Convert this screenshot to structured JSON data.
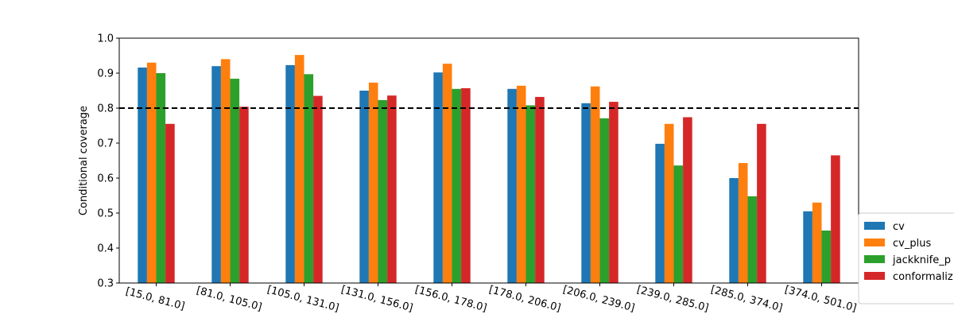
{
  "chart_data": {
    "type": "bar",
    "title": "",
    "xlabel": "",
    "ylabel": "Conditional coverage",
    "ylim": [
      0.3,
      1.0
    ],
    "yticks": [
      "0.3",
      "0.4",
      "0.5",
      "0.6",
      "0.7",
      "0.8",
      "0.9",
      "1.0"
    ],
    "categories": [
      "[15.0, 81.0]",
      "[81.0, 105.0]",
      "[105.0, 131.0]",
      "[131.0, 156.0]",
      "[156.0, 178.0]",
      "[178.0, 206.0]",
      "[206.0, 239.0]",
      "[239.0, 285.0]",
      "[285.0, 374.0]",
      "[374.0, 501.0]"
    ],
    "series": [
      {
        "name": "cv",
        "color": "#1f77b4",
        "values": [
          0.916,
          0.92,
          0.923,
          0.85,
          0.902,
          0.855,
          0.814,
          0.698,
          0.6,
          0.505
        ]
      },
      {
        "name": "cv_plus",
        "color": "#ff7f0e",
        "values": [
          0.93,
          0.94,
          0.952,
          0.873,
          0.927,
          0.864,
          0.862,
          0.755,
          0.643,
          0.53
        ]
      },
      {
        "name": "jackknife_plus",
        "color": "#2ca02c",
        "values": [
          0.9,
          0.884,
          0.897,
          0.823,
          0.855,
          0.808,
          0.771,
          0.636,
          0.548,
          0.45
        ]
      },
      {
        "name": "conformalized_quantile_regression",
        "color": "#d62728",
        "values": [
          0.755,
          0.804,
          0.835,
          0.836,
          0.857,
          0.832,
          0.818,
          0.774,
          0.755,
          0.665
        ]
      }
    ],
    "reference_line": {
      "y": 0.8,
      "style": "dashed",
      "color": "#000000"
    },
    "grid": false,
    "legend": {
      "placement": "lower-right, outside plot (cut off at right edge)",
      "visible_labels": [
        "cv",
        "cv_plus",
        "jackknife_p",
        "conformaliz"
      ]
    }
  }
}
